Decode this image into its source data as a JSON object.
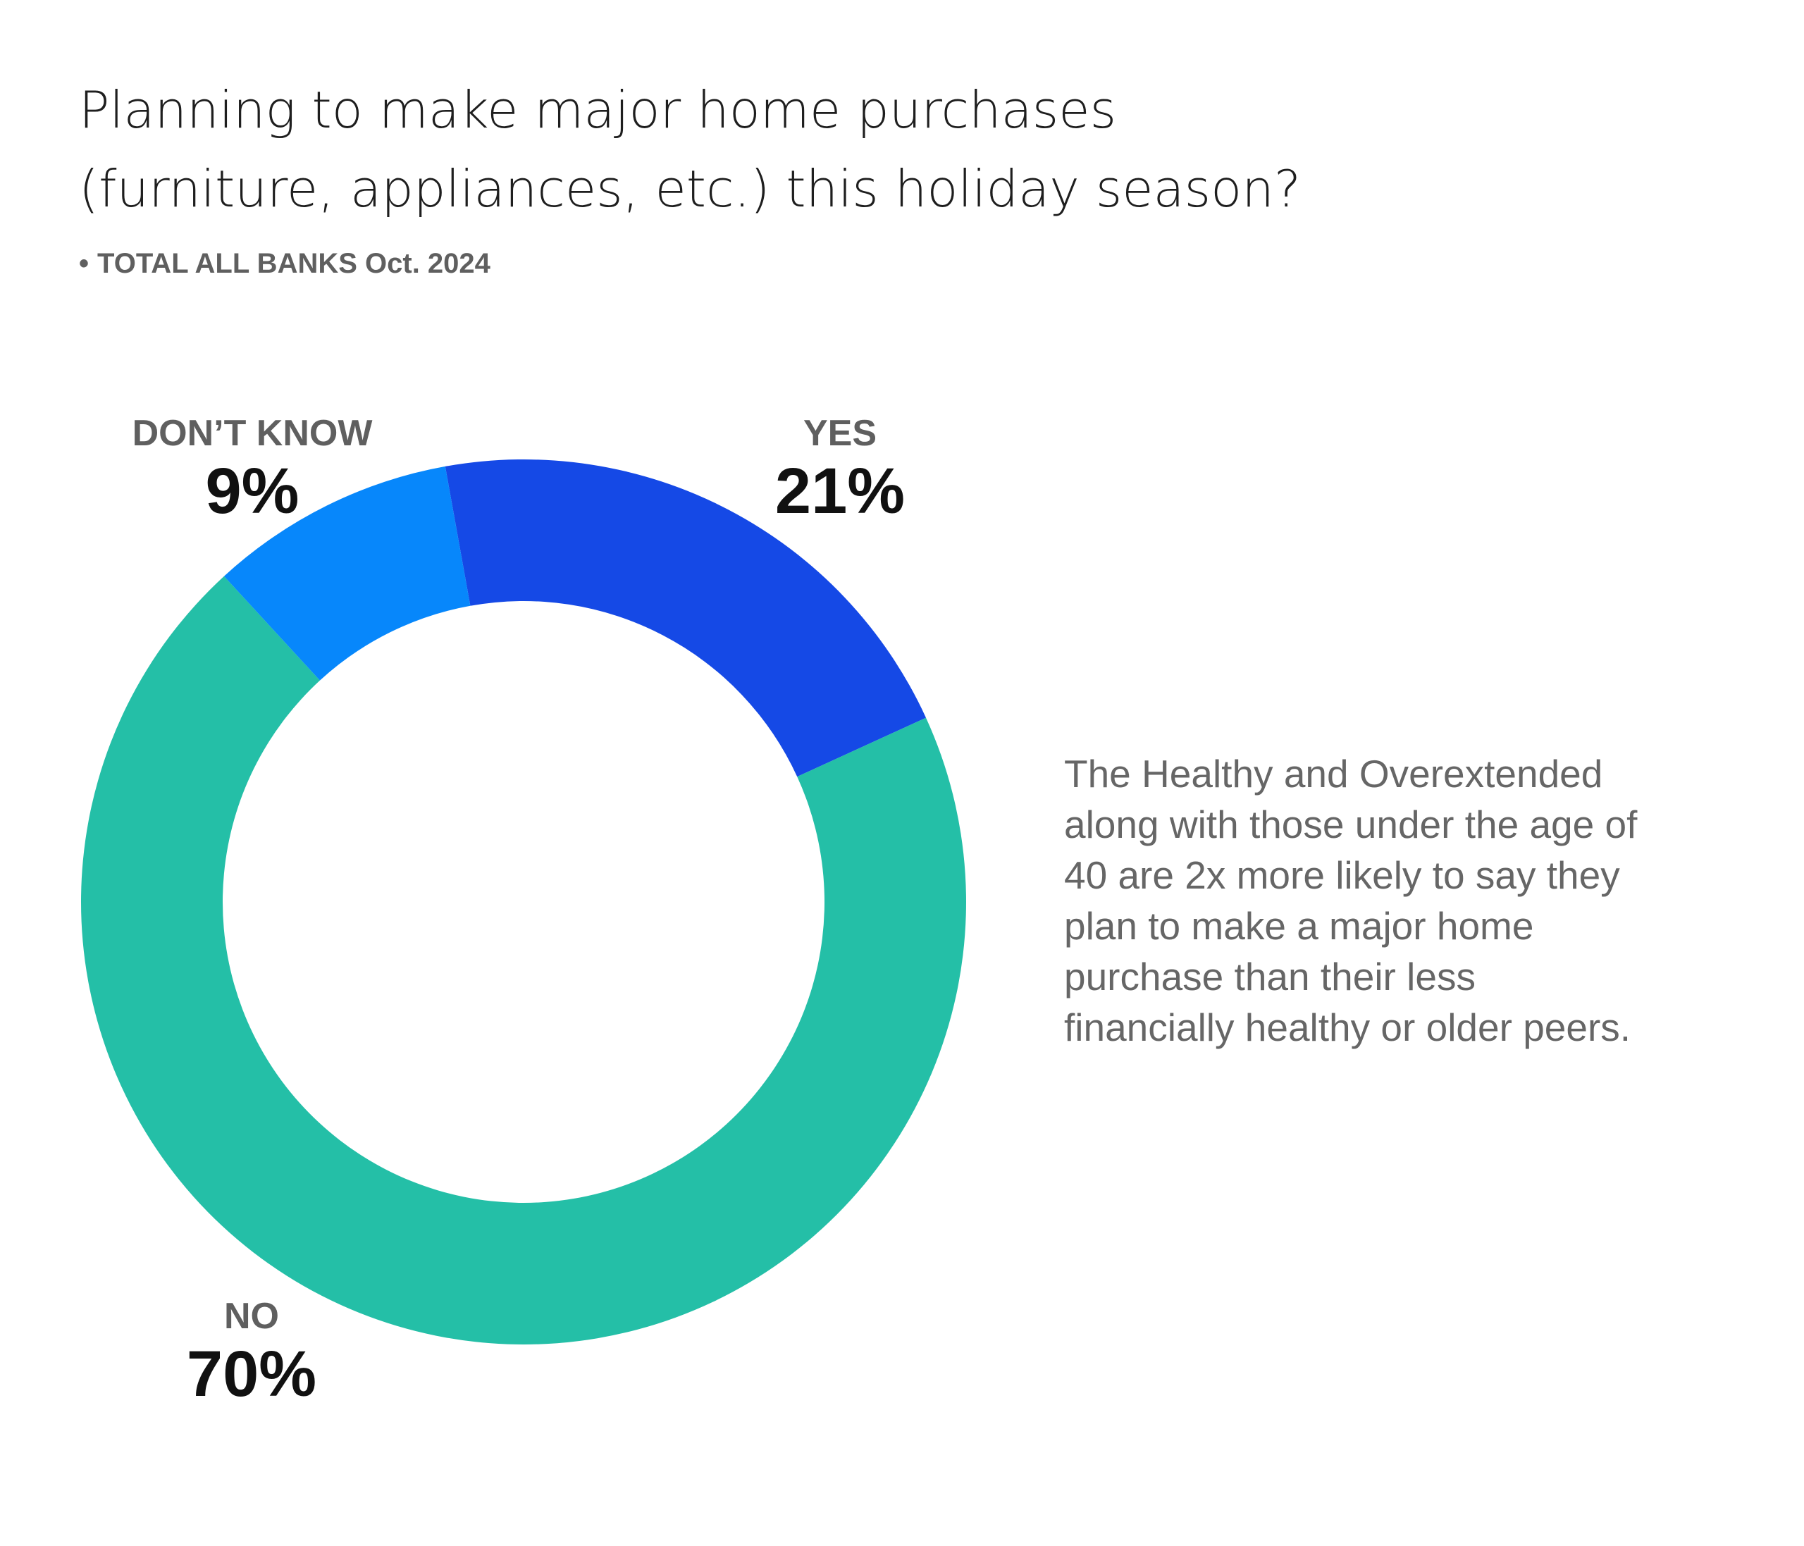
{
  "title_lines": [
    "Planning to make major home purchases",
    "(furniture, appliances, etc.) this holiday season?"
  ],
  "subtitle": {
    "bullet": "•",
    "text": "TOTAL ALL BANKS Oct. 2024"
  },
  "annotation_lines": [
    "The Healthy and Overextended",
    "along with those under the age of",
    "40 are 2x more likely to say they",
    "plan to make a major home",
    "purchase than their less",
    "financially healthy or older peers."
  ],
  "chart_data": {
    "type": "pie",
    "style": "donut",
    "title": "Planning to make major home purchases (furniture, appliances, etc.) this holiday season?",
    "subtitle": "TOTAL ALL BANKS Oct. 2024",
    "slices": [
      {
        "label": "YES",
        "value": 21,
        "display": "21%",
        "color": "#1549e6"
      },
      {
        "label": "NO",
        "value": 70,
        "display": "70%",
        "color": "#24bfa7"
      },
      {
        "label": "DON’T KNOW",
        "value": 9,
        "display": "9%",
        "color": "#0787fb"
      }
    ],
    "unit": "%",
    "start": "just left of top, clockwise",
    "legend": "none"
  }
}
